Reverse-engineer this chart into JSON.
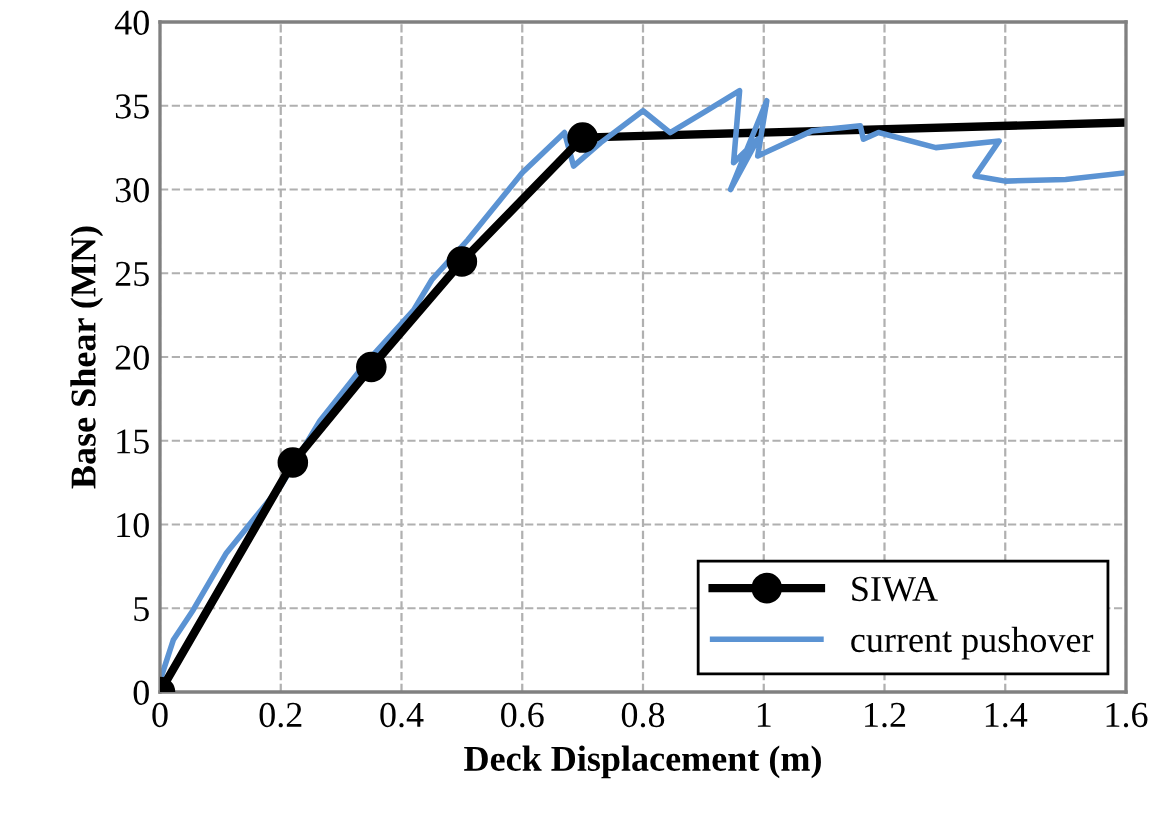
{
  "chart_data": {
    "type": "line",
    "xlabel": "Deck Displacement (m)",
    "ylabel": "Base Shear (MN)",
    "xlim": [
      0,
      1.6
    ],
    "xticks": [
      0,
      0.2,
      0.4,
      0.6,
      0.8,
      1,
      1.2,
      1.4,
      1.6
    ],
    "ylim": [
      0,
      40
    ],
    "yticks": [
      0,
      5,
      10,
      15,
      20,
      25,
      30,
      35,
      40
    ],
    "grid": true,
    "legend": "bottom right",
    "series": [
      {
        "name": "SIWA",
        "color": "#000000",
        "marker": "circle",
        "x": [
          0,
          0.22,
          0.35,
          0.5,
          0.7
        ],
        "values": [
          0,
          13.7,
          19.4,
          25.7,
          33.1
        ]
      },
      {
        "color": "#000000",
        "marker": "none",
        "x": [
          0.7,
          1.6
        ],
        "values": [
          33.1,
          34.0
        ]
      },
      {
        "name": "current pushover",
        "color": "#5b93d3",
        "marker": "none",
        "x": [
          0.002,
          0.022,
          0.055,
          0.11,
          0.2,
          0.265,
          0.34,
          0.42,
          0.45,
          0.51,
          0.6,
          0.67,
          0.685,
          0.73,
          0.8,
          0.845,
          0.905,
          0.96,
          0.95,
          0.99,
          0.945,
          1.005,
          0.99,
          1.08,
          1.16,
          1.165,
          1.19,
          1.285,
          1.39,
          1.35,
          1.4,
          1.5,
          1.6
        ],
        "values": [
          0.9,
          3.1,
          4.9,
          8.3,
          12.3,
          16.2,
          19.6,
          22.8,
          24.6,
          27.0,
          31.0,
          33.4,
          31.4,
          32.8,
          34.7,
          33.4,
          34.7,
          35.9,
          31.6,
          33.0,
          30.0,
          35.3,
          32.0,
          33.5,
          33.8,
          33.0,
          33.4,
          32.5,
          32.9,
          30.8,
          30.5,
          30.6,
          31.0
        ]
      }
    ]
  }
}
